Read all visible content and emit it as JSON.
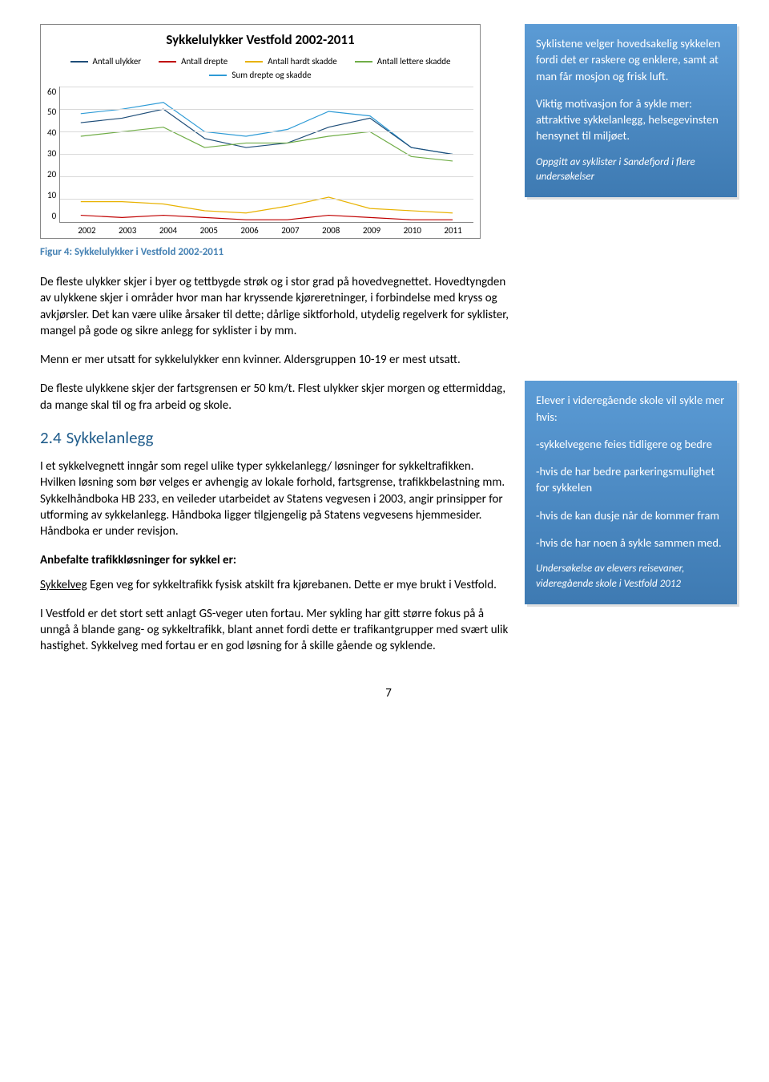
{
  "chart": {
    "title": "Sykkelulykker Vestfold 2002-2011",
    "type": "line",
    "xlabels": [
      "2002",
      "2003",
      "2004",
      "2005",
      "2006",
      "2007",
      "2008",
      "2009",
      "2010",
      "2011"
    ],
    "ylim": [
      0,
      60
    ],
    "yticks": [
      60,
      50,
      40,
      30,
      20,
      10,
      0
    ],
    "grid_color": "#d9d9d9",
    "border_color": "#888888",
    "legend": [
      {
        "label": "Antall ulykker",
        "color": "#1f4e79"
      },
      {
        "label": "Antall drepte",
        "color": "#c00000"
      },
      {
        "label": "Antall hardt skadde",
        "color": "#e8b200"
      },
      {
        "label": "Antall lettere skadde",
        "color": "#70ad47"
      },
      {
        "label": "Sum drepte og skadde",
        "color": "#2e9bd6"
      }
    ],
    "series": {
      "ulykker": [
        44,
        46,
        50,
        37,
        33,
        35,
        42,
        46,
        33,
        30
      ],
      "drepte": [
        3,
        2,
        3,
        2,
        1,
        1,
        3,
        2,
        1,
        1
      ],
      "hardt_skadde": [
        9,
        9,
        8,
        5,
        4,
        7,
        11,
        6,
        5,
        4
      ],
      "lettere": [
        38,
        40,
        42,
        33,
        35,
        35,
        38,
        40,
        29,
        27
      ],
      "sum": [
        48,
        50,
        53,
        40,
        38,
        41,
        49,
        47,
        33,
        30
      ]
    },
    "colors": {
      "ulykker": "#1f4e79",
      "drepte": "#c00000",
      "hardt_skadde": "#e8b200",
      "lettere": "#70ad47",
      "sum": "#2e9bd6"
    },
    "line_width": 2
  },
  "figure_caption": "Figur 4: Sykkelulykker i Vestfold 2002-2011",
  "body": {
    "p1": "De fleste ulykker skjer i byer og tettbygde strøk og i stor grad på hovedvegnettet. Hovedtyngden av ulykkene skjer i områder hvor man har kryssende kjøreretninger, i forbindelse med kryss og avkjørsler. Det kan være ulike årsaker til dette; dårlige siktforhold, utydelig regelverk for syklister, mangel på gode og sikre anlegg for syklister i by mm.",
    "p2": "Menn er mer utsatt for sykkelulykker enn kvinner. Aldersgruppen 10-19 er mest utsatt.",
    "p3": "De fleste ulykkene skjer der fartsgrensen er 50 km/t. Flest ulykker skjer morgen og ettermiddag, da mange skal til og fra arbeid og skole.",
    "section_num": "2.4",
    "section_title": "Sykkelanlegg",
    "p4": "I et sykkelvegnett inngår som regel ulike typer sykkelanlegg/ løsninger for sykkeltrafikken. Hvilken løsning som bør velges er avhengig av lokale forhold, fartsgrense, trafikkbelastning mm.",
    "p4b": "Sykkelhåndboka HB 233, en veileder utarbeidet av Statens vegvesen i 2003, angir prinsipper for utforming av sykkelanlegg.   Håndboka ligger tilgjengelig på Statens vegvesens hjemmesider. Håndboka er under revisjon.",
    "sub_head": "Anbefalte trafikkløsninger for sykkel er:",
    "p5_u": "Sykkelveg",
    "p5_rest": "   Egen veg for sykkeltrafikk fysisk atskilt fra kjørebanen.  Dette er mye brukt i Vestfold.",
    "p6": "I Vestfold er det stort sett anlagt GS-veger uten fortau. Mer sykling har gitt større fokus på å unngå å blande gang- og sykkeltrafikk, blant annet fordi dette er trafikantgrupper med svært ulik hastighet.  Sykkelveg med fortau er en god løsning for å skille gående og syklende."
  },
  "box1": {
    "p1": "Syklistene velger hovedsakelig sykkelen fordi det er raskere og enklere, samt at man får mosjon og frisk luft.",
    "p2a": "Viktig  motivasjon  for å sykle mer:",
    "p2b": " attraktive  sykkelanlegg, helsegevinsten",
    "p2c": "hensynet til miljøet.",
    "p3": "Oppgitt av syklister i Sandefjord i flere undersøkelser"
  },
  "box2": {
    "p1": "Elever i videregående skole vil sykle mer hvis:",
    "p2": "-sykkelvegene feies tidligere og bedre",
    "p3": "-hvis de har bedre parkeringsmulighet for sykkelen",
    "p4": "-hvis de kan dusje når de kommer fram",
    "p5": "-hvis de har noen å sykle sammen med.",
    "p6": "Undersøkelse av elevers reisevaner, videregående skole i Vestfold 2012"
  },
  "page_number": "7"
}
